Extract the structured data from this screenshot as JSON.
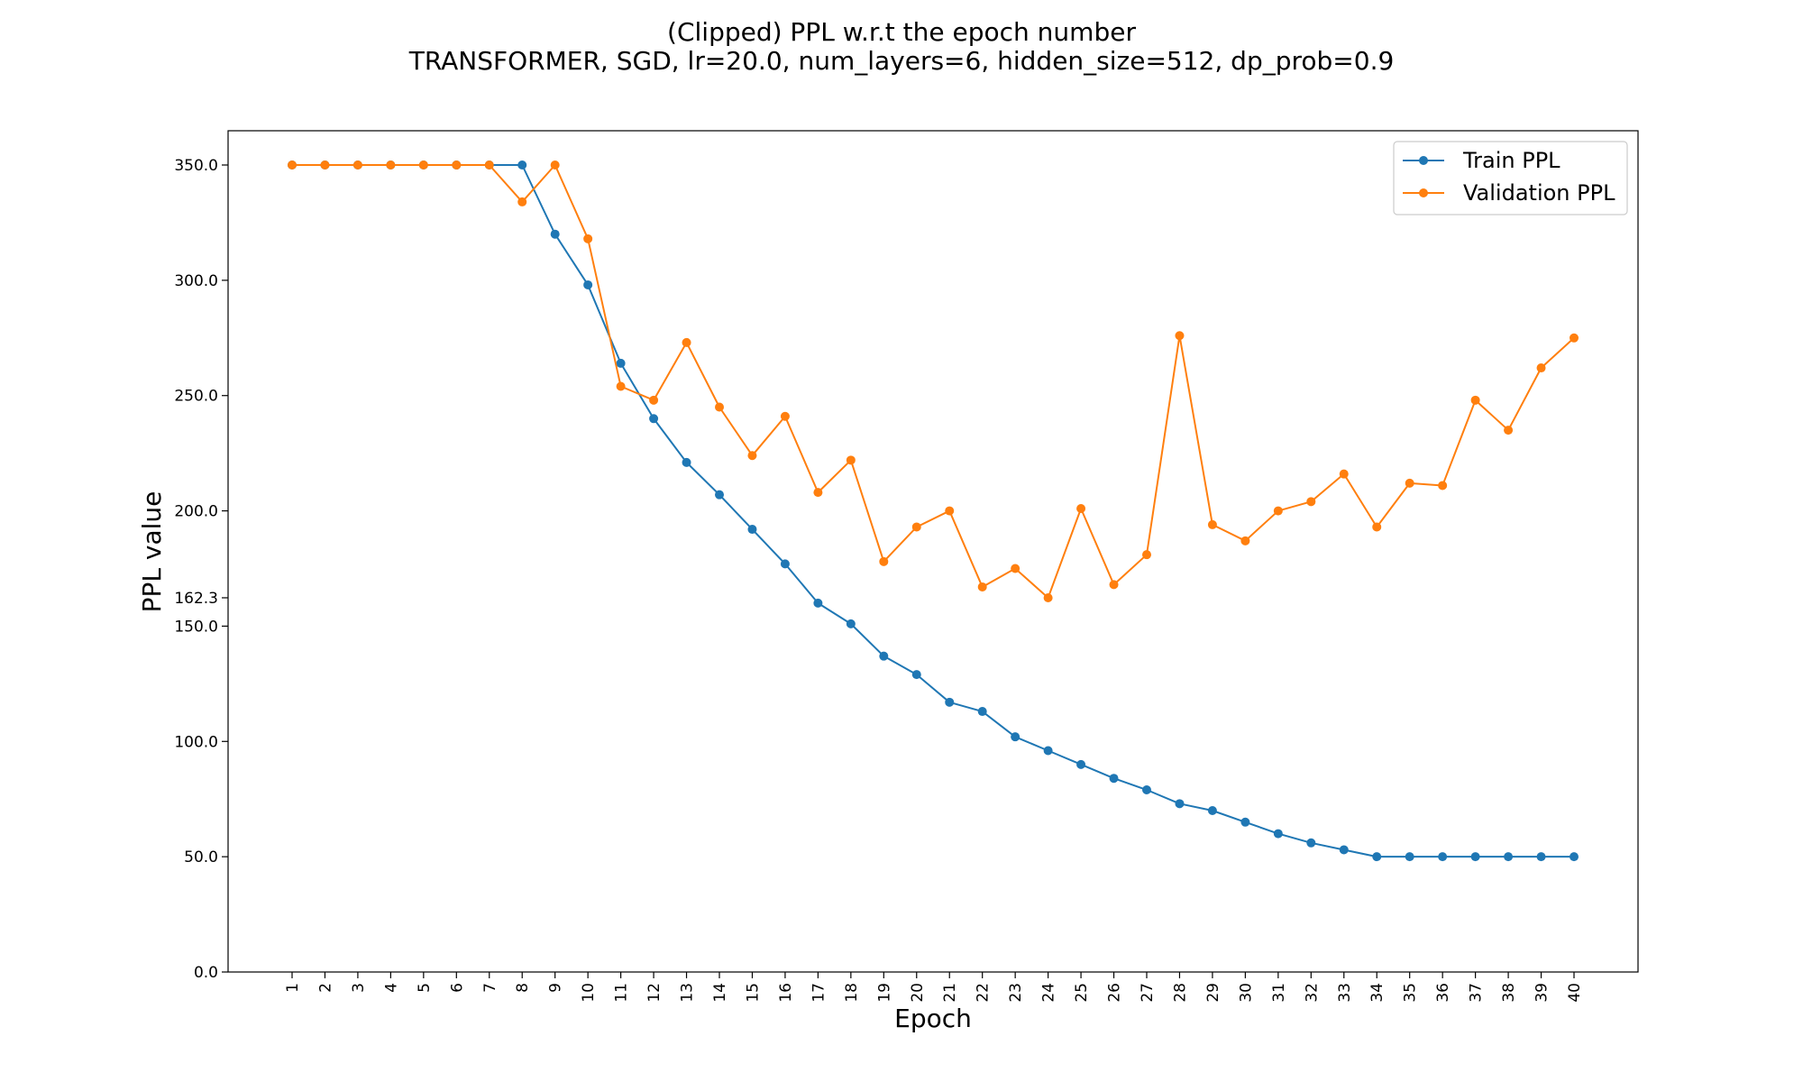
{
  "chart_data": {
    "type": "line",
    "title": "(Clipped) PPL w.r.t the epoch number",
    "subtitle": "TRANSFORMER, SGD, lr=20.0,  num_layers=6,  hidden_size=512,  dp_prob=0.9",
    "xlabel": "Epoch",
    "ylabel": "PPL value",
    "ylim": [
      0,
      365
    ],
    "yticks": [
      0.0,
      50.0,
      100.0,
      150.0,
      162.3,
      200.0,
      250.0,
      300.0,
      350.0
    ],
    "ytick_labels": [
      "0.0",
      "50.0",
      "100.0",
      "150.0",
      "162.3",
      "200.0",
      "250.0",
      "300.0",
      "350.0"
    ],
    "x": [
      1,
      2,
      3,
      4,
      5,
      6,
      7,
      8,
      9,
      10,
      11,
      12,
      13,
      14,
      15,
      16,
      17,
      18,
      19,
      20,
      21,
      22,
      23,
      24,
      25,
      26,
      27,
      28,
      29,
      30,
      31,
      32,
      33,
      34,
      35,
      36,
      37,
      38,
      39,
      40
    ],
    "x_labels": [
      "1",
      "2",
      "3",
      "4",
      "5",
      "6",
      "7",
      "8",
      "9",
      "10",
      "11",
      "12",
      "13",
      "14",
      "15",
      "16",
      "17",
      "18",
      "19",
      "20",
      "21",
      "22",
      "23",
      "24",
      "25",
      "26",
      "27",
      "28",
      "29",
      "30",
      "31",
      "32",
      "33",
      "34",
      "35",
      "36",
      "37",
      "38",
      "39",
      "40"
    ],
    "grid": false,
    "legend_position": "top-right",
    "series": [
      {
        "name": "Train PPL",
        "color": "#1f77b4",
        "values": [
          350,
          350,
          350,
          350,
          350,
          350,
          350,
          350,
          320,
          298,
          264,
          240,
          221,
          207,
          192,
          177,
          160,
          151,
          137,
          129,
          117,
          113,
          102,
          96,
          90,
          84,
          79,
          73,
          70,
          65,
          60,
          56,
          53,
          50,
          50,
          50,
          50,
          50,
          50,
          50
        ]
      },
      {
        "name": "Validation PPL",
        "color": "#ff7f0e",
        "values": [
          350,
          350,
          350,
          350,
          350,
          350,
          350,
          334,
          350,
          318,
          254,
          248,
          273,
          245,
          224,
          241,
          208,
          222,
          178,
          193,
          200,
          167,
          175,
          162.3,
          201,
          168,
          181,
          276,
          194,
          187,
          200,
          204,
          216,
          193,
          212,
          211,
          248,
          235,
          262,
          275
        ]
      }
    ]
  }
}
